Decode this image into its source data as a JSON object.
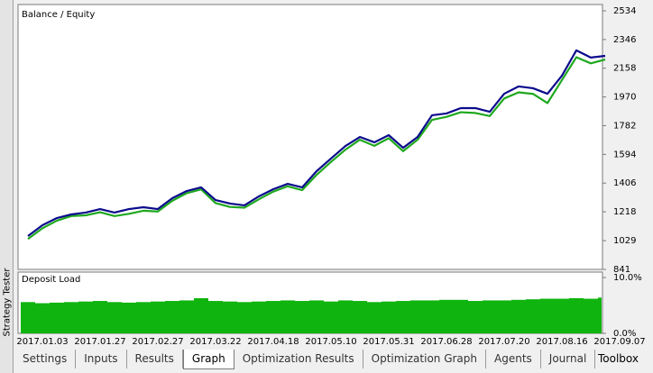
{
  "side_label": "Strategy Tester",
  "tabs": [
    "Settings",
    "Inputs",
    "Results",
    "Graph",
    "Optimization Results",
    "Optimization Graph",
    "Agents",
    "Journal"
  ],
  "active_tab": 3,
  "toolbox": "Toolbox",
  "chart_data": [
    {
      "type": "line",
      "legend_separator": " / ",
      "categories": [
        null,
        "2017.01.03",
        null,
        null,
        null,
        "2017.01.27",
        null,
        null,
        null,
        "2017.02.27",
        null,
        null,
        null,
        "2017.03.22",
        null,
        null,
        null,
        "2017.04.18",
        null,
        null,
        null,
        "2017.05.10",
        null,
        null,
        null,
        "2017.05.31",
        null,
        null,
        null,
        "2017.06.28",
        null,
        null,
        null,
        "2017.07.20",
        null,
        null,
        null,
        "2017.08.16",
        null,
        null,
        null,
        "2017.09.07"
      ],
      "series": [
        {
          "name": "Equity",
          "color": "#1fa81f",
          "values": [
            1040,
            1110,
            1160,
            1190,
            1195,
            1215,
            1190,
            1205,
            1225,
            1220,
            1290,
            1340,
            1365,
            1275,
            1250,
            1245,
            1300,
            1350,
            1385,
            1360,
            1460,
            1545,
            1625,
            1690,
            1650,
            1700,
            1615,
            1690,
            1820,
            1840,
            1870,
            1865,
            1845,
            1960,
            2000,
            1990,
            1930,
            2080,
            2230,
            2190,
            2215,
            null
          ]
        },
        {
          "name": "Balance",
          "color": "#0a0a8c",
          "values": [
            1059,
            1130,
            1177,
            1201,
            1213,
            1236,
            1213,
            1236,
            1248,
            1236,
            1307,
            1354,
            1378,
            1295,
            1272,
            1260,
            1319,
            1366,
            1401,
            1378,
            1484,
            1567,
            1649,
            1708,
            1673,
            1720,
            1637,
            1708,
            1850,
            1862,
            1897,
            1897,
            1873,
            1991,
            2039,
            2027,
            1991,
            2109,
            2275,
            2228,
            2239,
            null
          ]
        }
      ],
      "ylim": [
        841,
        2534
      ],
      "yticks": [
        2534,
        2346,
        2158,
        1970,
        1782,
        1594,
        1406,
        1218,
        1029,
        841
      ]
    },
    {
      "type": "bar",
      "title": "Deposit Load",
      "color": "#0fb40f",
      "values": [
        5.6,
        5.4,
        5.5,
        5.6,
        5.7,
        5.8,
        5.6,
        5.5,
        5.6,
        5.7,
        5.8,
        5.9,
        6.3,
        5.8,
        5.7,
        5.6,
        5.7,
        5.8,
        5.9,
        5.8,
        5.9,
        5.7,
        5.9,
        5.8,
        5.6,
        5.7,
        5.8,
        5.9,
        5.9,
        6.0,
        6.0,
        5.8,
        5.9,
        5.9,
        6.0,
        6.1,
        6.2,
        6.2,
        6.3,
        6.2,
        6.4,
        null
      ],
      "ylim": [
        0,
        10
      ],
      "yticks": [
        {
          "value": 10,
          "label": "10.0%"
        },
        {
          "value": 0,
          "label": "0.0%"
        }
      ]
    }
  ]
}
